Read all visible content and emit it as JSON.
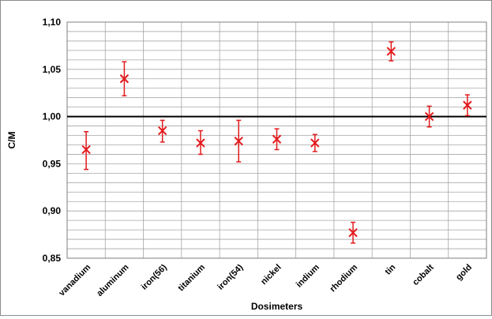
{
  "chart_data": {
    "type": "scatter",
    "title": "",
    "xlabel": "Dosimeters",
    "ylabel": "C/M",
    "ylim": [
      0.85,
      1.1
    ],
    "y_ticks": [
      "0,85",
      "0,90",
      "0,95",
      "1,00",
      "1,05",
      "1,10"
    ],
    "grid": true,
    "reference_line": 1.0,
    "error_bars": true,
    "marker": "x",
    "colors": {
      "points": "#e31a1c",
      "reference": "#000000",
      "grid": "#a6a6a6"
    },
    "categories": [
      "vanadium",
      "aluminum",
      "iron(56)",
      "titanium",
      "iron(54)",
      "nickel",
      "indium",
      "rhodium",
      "tin",
      "cobalt",
      "gold"
    ],
    "series": [
      {
        "values": [
          0.965,
          1.04,
          0.985,
          0.972,
          0.974,
          0.976,
          0.972,
          0.877,
          1.069,
          1.0,
          1.012
        ],
        "error_low": [
          0.944,
          1.022,
          0.973,
          0.96,
          0.952,
          0.965,
          0.963,
          0.866,
          1.059,
          0.989,
          1.001
        ],
        "error_high": [
          0.984,
          1.058,
          0.996,
          0.985,
          0.996,
          0.987,
          0.981,
          0.888,
          1.079,
          1.011,
          1.023
        ]
      }
    ]
  }
}
